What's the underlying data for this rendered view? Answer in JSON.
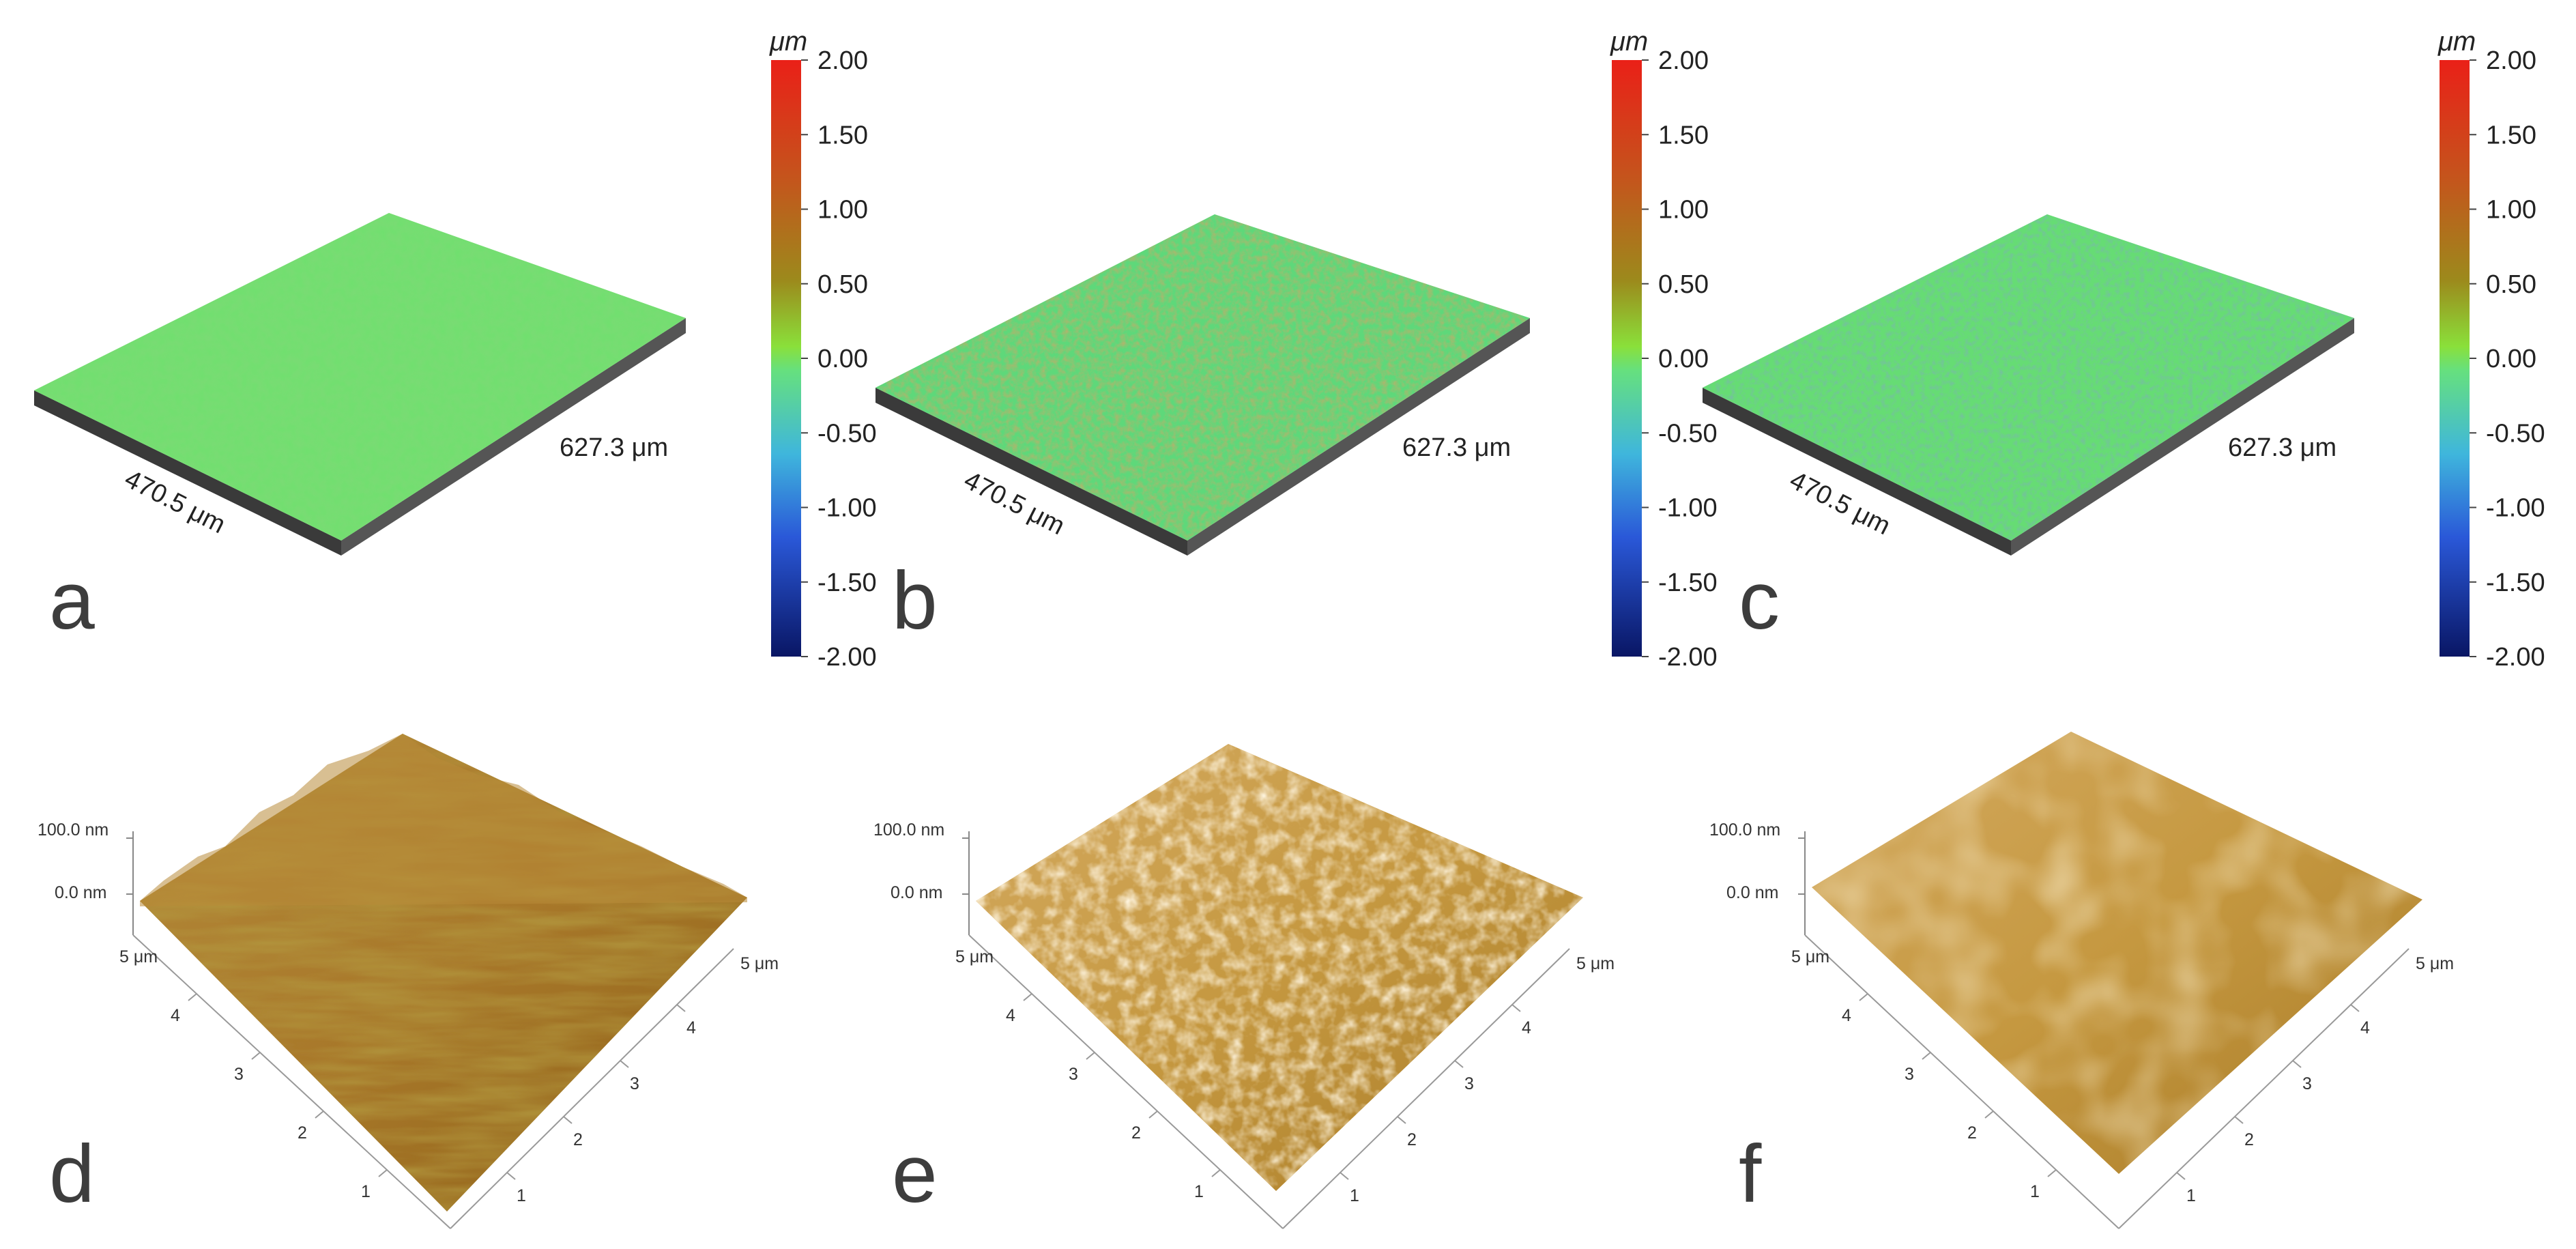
{
  "panels_top": [
    {
      "label": "a",
      "width_label": "470.5 μm",
      "length_label": "627.3 μm",
      "roughness": "low"
    },
    {
      "label": "b",
      "width_label": "470.5 μm",
      "length_label": "627.3 μm",
      "roughness": "high"
    },
    {
      "label": "c",
      "width_label": "470.5 μm",
      "length_label": "627.3 μm",
      "roughness": "medium"
    }
  ],
  "colorbar": {
    "unit": "μm",
    "ticks": [
      "2.00",
      "1.50",
      "1.00",
      "0.50",
      "0.00",
      "-0.50",
      "-1.00",
      "-1.50",
      "-2.00"
    ],
    "colors": [
      "#e0201a",
      "#c25a1a",
      "#9a8a1a",
      "#7ee040",
      "#66e07a",
      "#42b8d8",
      "#2a5ad8",
      "#1a2aa8",
      "#0a1a6a"
    ]
  },
  "panels_bottom": [
    {
      "label": "d",
      "z_top": "100.0 nm",
      "z_zero": "0.0 nm",
      "x_max": "5 μm",
      "y_max": "5 μm",
      "axis_ticks": [
        "1",
        "2",
        "3",
        "4"
      ],
      "texture": "ridged"
    },
    {
      "label": "e",
      "z_top": "100.0 nm",
      "z_zero": "0.0 nm",
      "x_max": "5 μm",
      "y_max": "5 μm",
      "axis_ticks": [
        "1",
        "2",
        "3",
        "4"
      ],
      "texture": "granular"
    },
    {
      "label": "f",
      "z_top": "100.0 nm",
      "z_zero": "0.0 nm",
      "x_max": "5 μm",
      "y_max": "5 μm",
      "axis_ticks": [
        "1",
        "2",
        "3",
        "4"
      ],
      "texture": "smooth"
    }
  ]
}
